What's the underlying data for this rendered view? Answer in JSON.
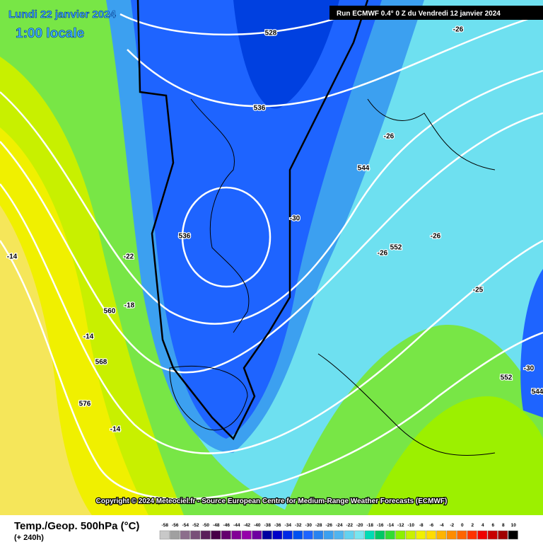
{
  "header": {
    "date": "Lundi 22 janvier 2024",
    "time": "1:00 locale",
    "run": "Run ECMWF 0.4° 0 Z du Vendredi 12 janvier 2024"
  },
  "map": {
    "contour_labels": [
      "528",
      "-26",
      "536",
      "-26",
      "544",
      "-30",
      "536",
      "-26",
      "552",
      "-26",
      "-22",
      "-14",
      "-25",
      "560",
      "-18",
      "-14",
      "568",
      "-30",
      "552",
      "544",
      "576",
      "-14"
    ]
  },
  "copyright": "Copyright © 2024 Meteociel.fr - Source European Centre for Medium-Range Weather Forecasts (ECMWF)",
  "legend": {
    "title": "Temp./Geop. 500hPa (°C)",
    "lead": "(+ 240h)",
    "values": [
      -58,
      -56,
      -54,
      -52,
      -50,
      -48,
      -46,
      -44,
      -42,
      -40,
      -38,
      -36,
      -34,
      -32,
      -30,
      -28,
      -26,
      -24,
      -22,
      -20,
      -18,
      -16,
      -14,
      -12,
      -10,
      -8,
      -6,
      -4,
      -2,
      0,
      2,
      4,
      6,
      8,
      10
    ],
    "colors": [
      "#c8c8c8",
      "#a0a0a0",
      "#8c6e8c",
      "#785078",
      "#5a1e5a",
      "#460046",
      "#64006e",
      "#820096",
      "#9600aa",
      "#6e00a0",
      "#0000a0",
      "#0000c8",
      "#0028e6",
      "#0050f0",
      "#1e64ff",
      "#2882f0",
      "#3ca0f0",
      "#50b4f0",
      "#64d2f0",
      "#78e6f0",
      "#00dcb4",
      "#00c864",
      "#32dc32",
      "#8cf000",
      "#c8f000",
      "#f0f000",
      "#ffdc00",
      "#ffb400",
      "#ff8c00",
      "#ff6400",
      "#ff3200",
      "#f00000",
      "#c80000",
      "#a00000",
      "#000000"
    ]
  }
}
